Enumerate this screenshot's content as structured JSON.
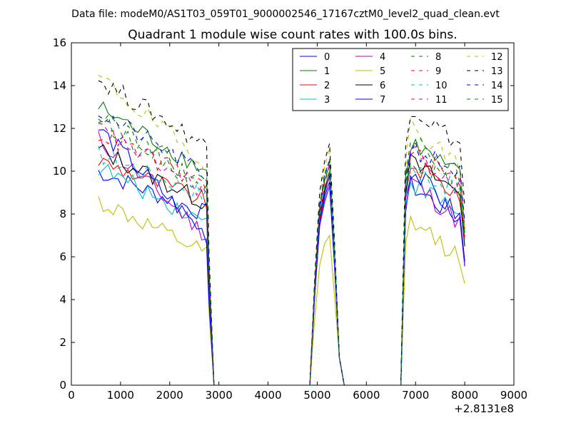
{
  "figure": {
    "suptitle": "Data file: modeM0/AS1T03_059T01_9000002546_17167cztM0_level2_quad_clean.evt",
    "offset_label": "+2.8131e8"
  },
  "chart_data": {
    "type": "line",
    "title": "Quadrant 1 module wise count rates with 100.0s bins.",
    "xlabel": "",
    "ylabel": "",
    "xlim": [
      0,
      9000
    ],
    "ylim": [
      0,
      16
    ],
    "x_offset": 281310000,
    "xticks": [
      0,
      1000,
      2000,
      3000,
      4000,
      5000,
      6000,
      7000,
      8000,
      9000
    ],
    "yticks": [
      0,
      2,
      4,
      6,
      8,
      10,
      12,
      14,
      16
    ],
    "grid": false,
    "legend_position": "top-right",
    "legend_columns": 4,
    "segments": [
      {
        "t_start": 550,
        "t_end": 2750,
        "gap_to": 3000
      },
      {
        "t_start": 4850,
        "t_end": 5550,
        "gap_to": 5650
      },
      {
        "t_start": 6700,
        "t_end": 8050
      }
    ],
    "series": [
      {
        "name": "0",
        "color": "#0000ff",
        "dash": "solid",
        "s1": [
          10.0,
          8.0
        ],
        "s2": 9.8,
        "s3": [
          9.5,
          7.5
        ]
      },
      {
        "name": "1",
        "color": "#008000",
        "dash": "solid",
        "s1": [
          13.0,
          10.0
        ],
        "s2": 10.3,
        "s3": [
          11.5,
          9.5
        ]
      },
      {
        "name": "2",
        "color": "#ff0000",
        "dash": "solid",
        "s1": [
          10.5,
          8.6
        ],
        "s2": 9.7,
        "s3": [
          10.5,
          8.7
        ]
      },
      {
        "name": "3",
        "color": "#00bfbf",
        "dash": "solid",
        "s1": [
          10.2,
          7.6
        ],
        "s2": 9.3,
        "s3": [
          9.7,
          7.8
        ]
      },
      {
        "name": "4",
        "color": "#bf00bf",
        "dash": "solid",
        "s1": [
          11.5,
          7.0
        ],
        "s2": 9.3,
        "s3": [
          9.8,
          7.3
        ]
      },
      {
        "name": "5",
        "color": "#bfbf00",
        "dash": "solid",
        "s1": [
          8.6,
          6.1
        ],
        "s2": 7.0,
        "s3": [
          7.8,
          5.8
        ]
      },
      {
        "name": "6",
        "color": "#000000",
        "dash": "solid",
        "s1": [
          11.0,
          8.5
        ],
        "s2": 10.0,
        "s3": [
          10.5,
          8.8
        ]
      },
      {
        "name": "7",
        "color": "#0000ff",
        "dash": "solid",
        "s1": [
          12.0,
          7.0
        ],
        "s2": 9.5,
        "s3": [
          10.3,
          7.5
        ]
      },
      {
        "name": "8",
        "color": "#008000",
        "dash": "dashed",
        "s1": [
          12.5,
          9.2
        ],
        "s2": 10.5,
        "s3": [
          10.8,
          9.0
        ]
      },
      {
        "name": "9",
        "color": "#ff0000",
        "dash": "dashed",
        "s1": [
          11.8,
          9.3
        ],
        "s2": 10.3,
        "s3": [
          11.0,
          9.3
        ]
      },
      {
        "name": "10",
        "color": "#00bfbf",
        "dash": "dashed",
        "s1": [
          10.8,
          8.9
        ],
        "s2": 10.0,
        "s3": [
          10.3,
          8.9
        ]
      },
      {
        "name": "11",
        "color": "#bf00bf",
        "dash": "dashed",
        "s1": [
          12.0,
          9.0
        ],
        "s2": 10.4,
        "s3": [
          11.0,
          9.0
        ]
      },
      {
        "name": "12",
        "color": "#bfbf00",
        "dash": "dashed",
        "s1": [
          14.4,
          10.3
        ],
        "s2": 11.1,
        "s3": [
          12.3,
          10.0
        ]
      },
      {
        "name": "13",
        "color": "#000000",
        "dash": "dashed",
        "s1": [
          14.3,
          11.2
        ],
        "s2": 11.3,
        "s3": [
          13.2,
          11.0
        ]
      },
      {
        "name": "14",
        "color": "#0000ff",
        "dash": "dashed",
        "s1": [
          12.8,
          9.8
        ],
        "s2": 10.5,
        "s3": [
          11.3,
          9.7
        ]
      },
      {
        "name": "15",
        "color": "#008000",
        "dash": "dashed",
        "s1": [
          12.8,
          9.3
        ],
        "s2": 10.6,
        "s3": [
          11.7,
          9.5
        ]
      }
    ]
  }
}
